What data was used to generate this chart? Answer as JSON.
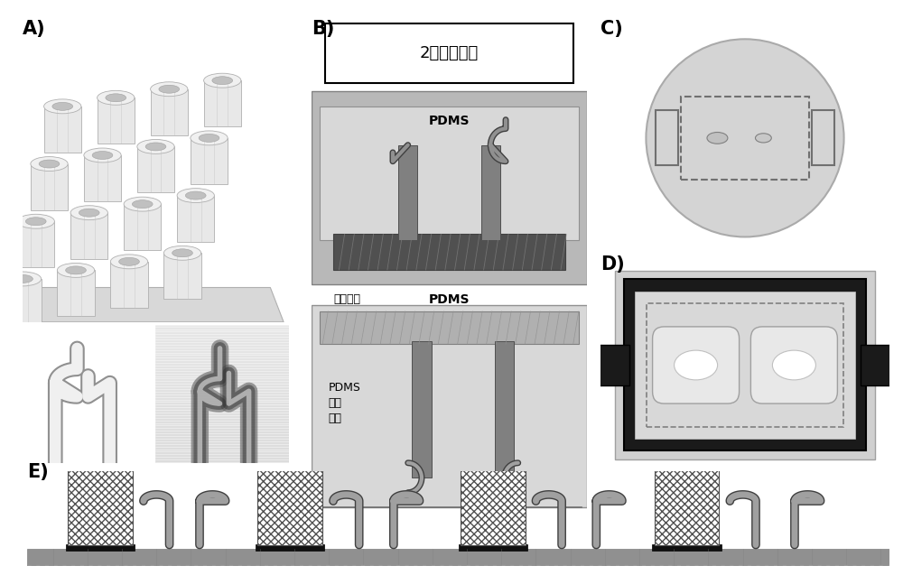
{
  "bg_color": "#ffffff",
  "b_title": "2步铸造工艺",
  "b_pdms_label": "PDMS",
  "b_mold_label": "铸造模具",
  "b2_pdms_label": "PDMS",
  "b2_mold_label": "PDMS\n铸造\n模具",
  "gray_lightest": "#e8e8e8",
  "gray_light": "#d0d0d0",
  "gray_medium": "#b0b0b0",
  "gray_dark": "#808080",
  "gray_darker": "#606060",
  "gray_darkest": "#404040",
  "black": "#000000",
  "white": "#ffffff",
  "photo_bg_dark": "#303030",
  "photo_bg_gray": "#888888"
}
